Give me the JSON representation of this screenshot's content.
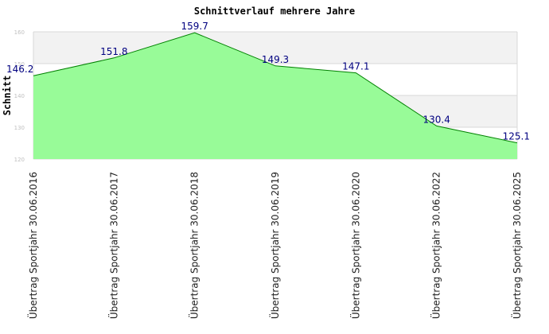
{
  "chart_data": {
    "type": "area",
    "title": "Schnittverlauf mehrere Jahre",
    "ylabel": "Schnitt",
    "xlabel": "",
    "ylim": [
      120,
      160
    ],
    "yticks": [
      120,
      130,
      140,
      150,
      160
    ],
    "grid": true,
    "categories": [
      "Übertrag Sportjahr 30.06.2016",
      "Übertrag Sportjahr 30.06.2017",
      "Übertrag Sportjahr 30.06.2018",
      "Übertrag Sportjahr 30.06.2019",
      "Übertrag Sportjahr 30.06.2020",
      "Übertrag Sportjahr 30.06.2022",
      "Übertrag Sportjahr 30.06.2025"
    ],
    "values": [
      146.2,
      151.8,
      159.7,
      149.3,
      147.1,
      130.4,
      125.1
    ],
    "value_labels": [
      "146.2",
      "151.8",
      "159.7",
      "149.3",
      "147.1",
      "130.4",
      "125.1"
    ],
    "colors": {
      "fill": "#98fb98",
      "line": "#008000",
      "band": "#f2f2f2",
      "grid": "#d8d8d8",
      "value_label": "#000080"
    }
  }
}
